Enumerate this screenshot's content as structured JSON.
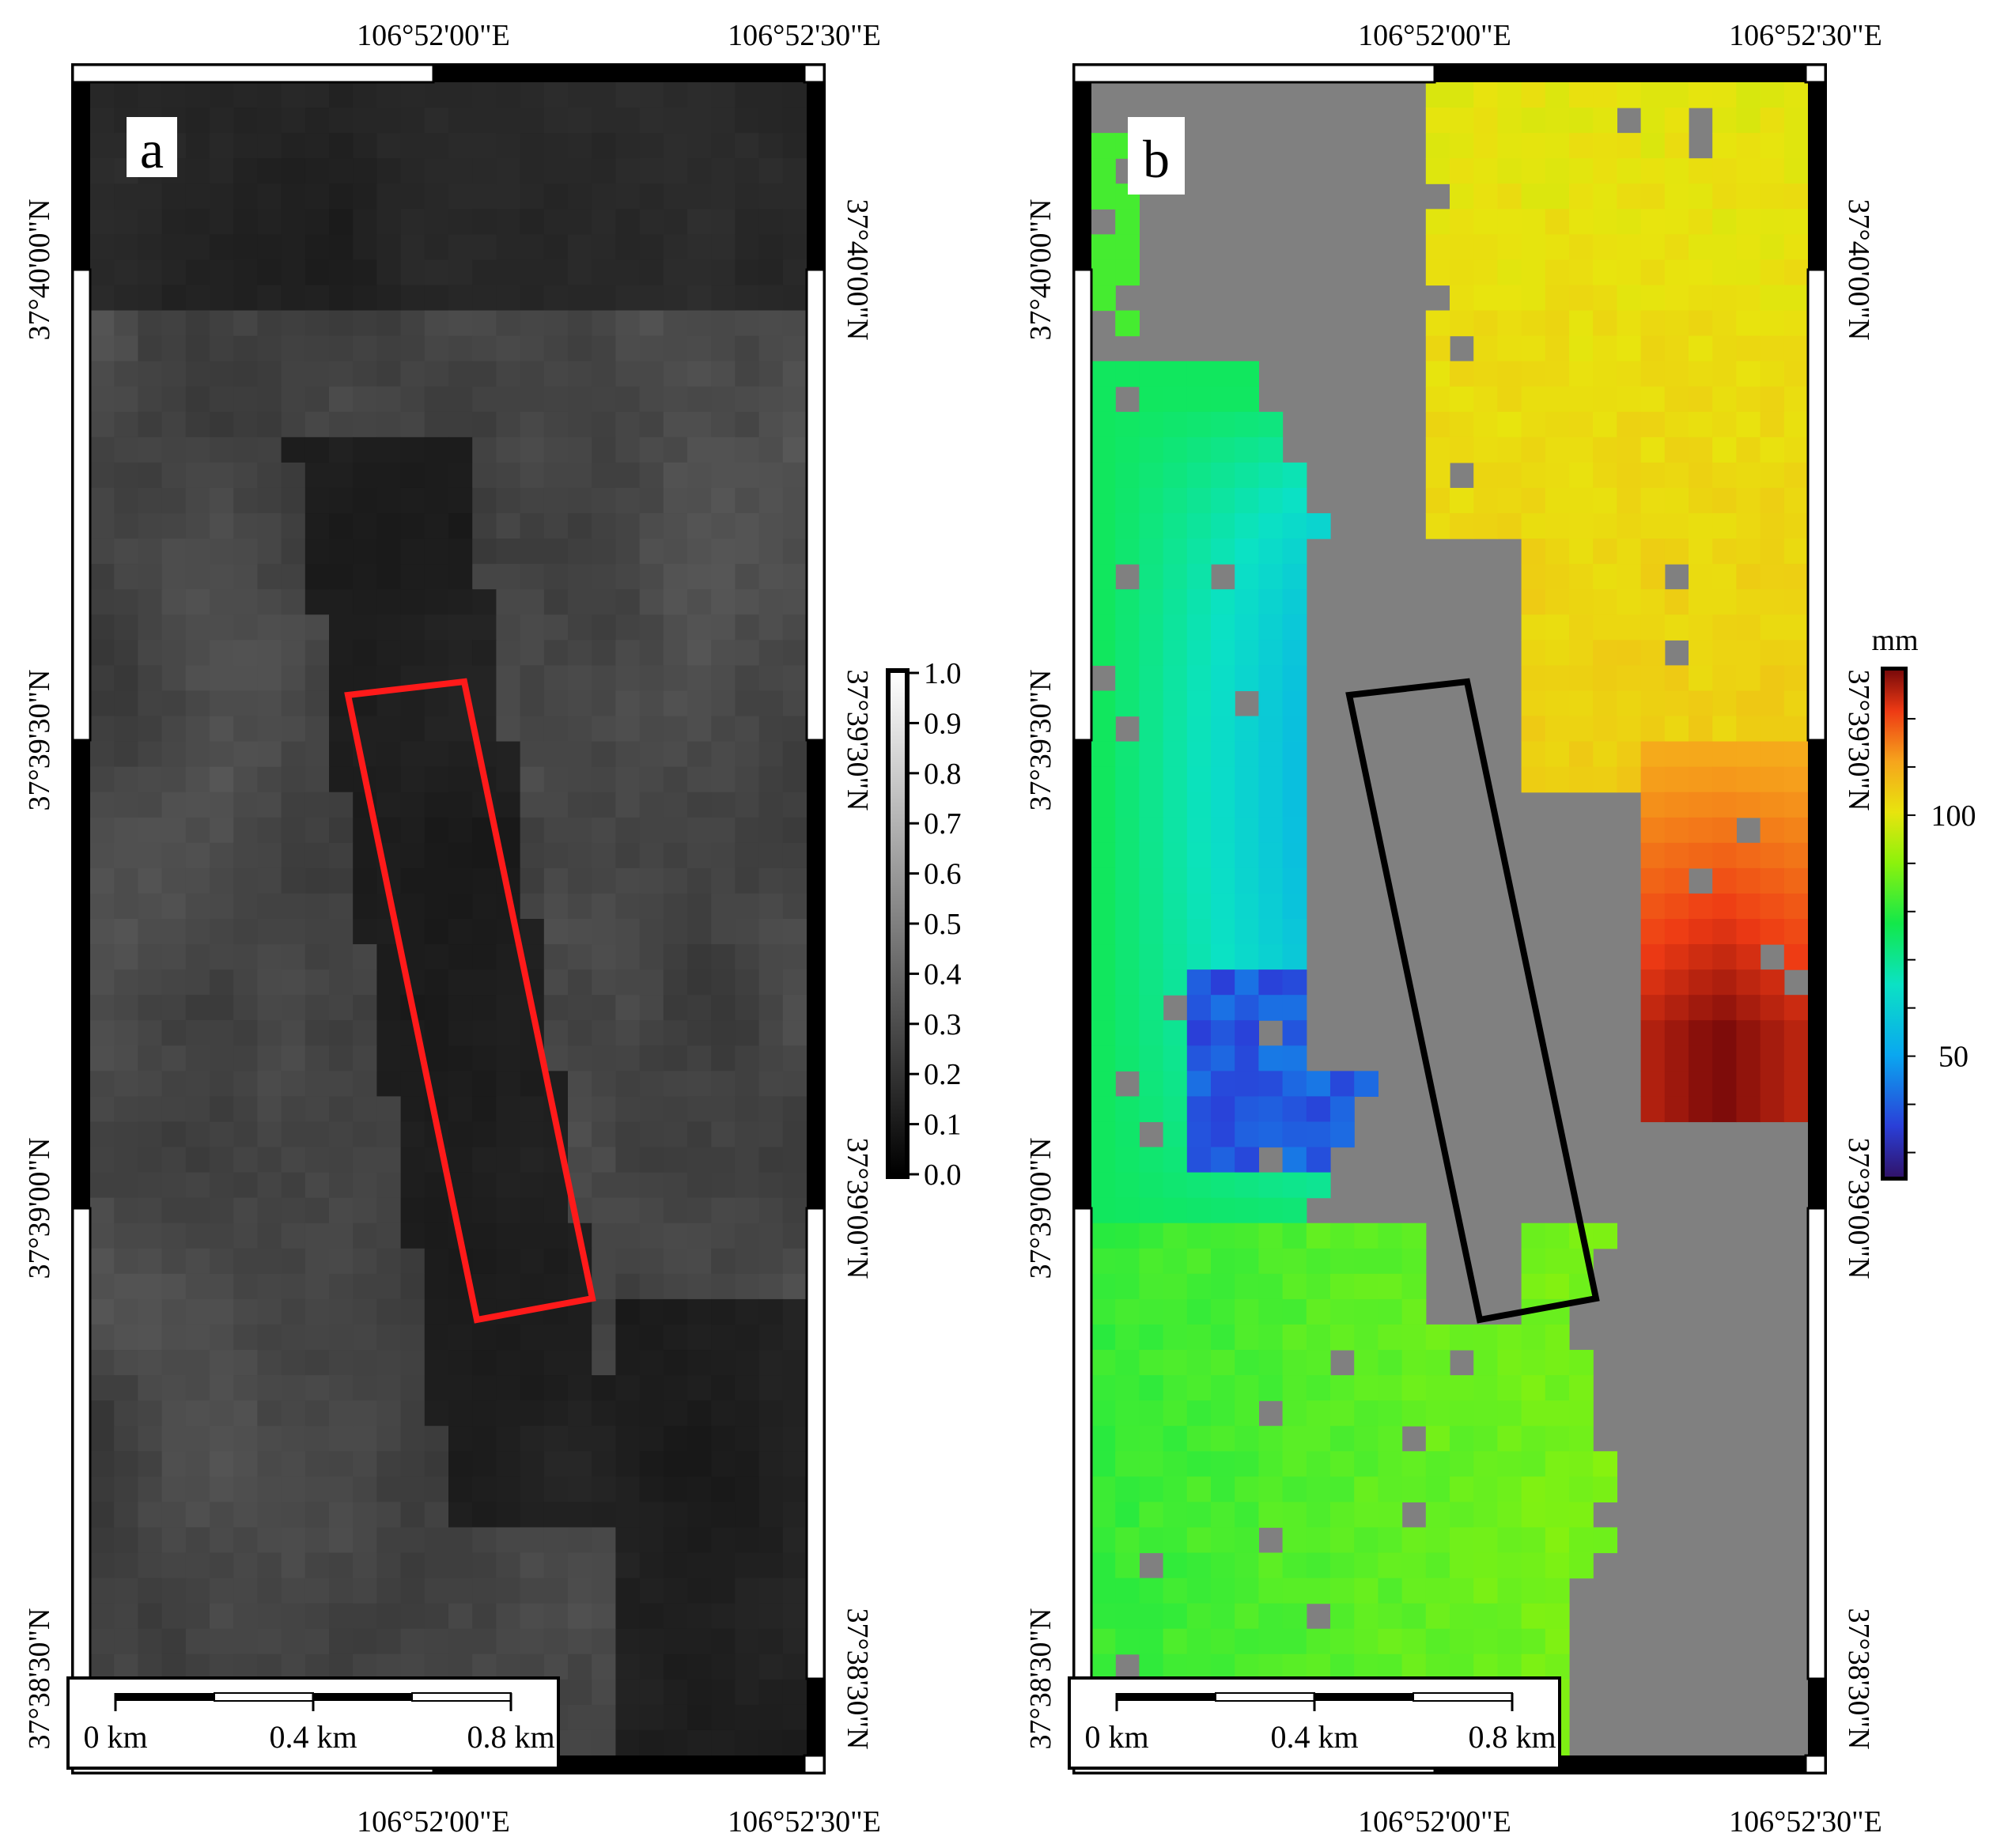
{
  "panels": [
    {
      "id": "a",
      "letter": "a",
      "type": "coherence",
      "top_lon_labels": [
        "106°52'00\"E",
        "106°52'30\"E"
      ],
      "bottom_lon_labels": [
        "106°52'00\"E",
        "106°52'30\"E"
      ],
      "left_lat_labels": [
        "37°40'00\"N",
        "37°39'30\"N",
        "37°39'00\"N",
        "37°38'30\"N"
      ],
      "right_lat_labels": [
        "37°40'00\"N",
        "37°39'30\"N",
        "37°39'00\"N",
        "37°38'30\"N"
      ],
      "colorbar": {
        "unit": "",
        "ticks": [
          "1.0",
          "0.9",
          "0.8",
          "0.7",
          "0.6",
          "0.5",
          "0.4",
          "0.3",
          "0.2",
          "0.1",
          "0.0"
        ],
        "range": [
          0,
          1
        ]
      },
      "scalebar": {
        "labels": [
          "0 km",
          "0.4 km",
          "0.8 km"
        ]
      },
      "box_color": "#ff1a1a"
    },
    {
      "id": "b",
      "letter": "b",
      "type": "deformation",
      "top_lon_labels": [
        "106°52'00\"E",
        "106°52'30\"E"
      ],
      "bottom_lon_labels": [
        "106°52'00\"E",
        "106°52'30\"E"
      ],
      "left_lat_labels": [
        "37°40'00\"N",
        "37°39'30\"N",
        "37°39'00\"N",
        "37°38'30\"N"
      ],
      "right_lat_labels": [
        "37°40'00\"N",
        "37°39'30\"N",
        "37°39'00\"N",
        "37°38'30\"N"
      ],
      "colorbar": {
        "unit": "mm",
        "ticks": [
          "100",
          "50"
        ],
        "range": [
          25,
          130
        ]
      },
      "scalebar": {
        "labels": [
          "0 km",
          "0.4 km",
          "0.8 km"
        ]
      },
      "box_color": "#000000",
      "nodata_color": "#808080"
    }
  ]
}
